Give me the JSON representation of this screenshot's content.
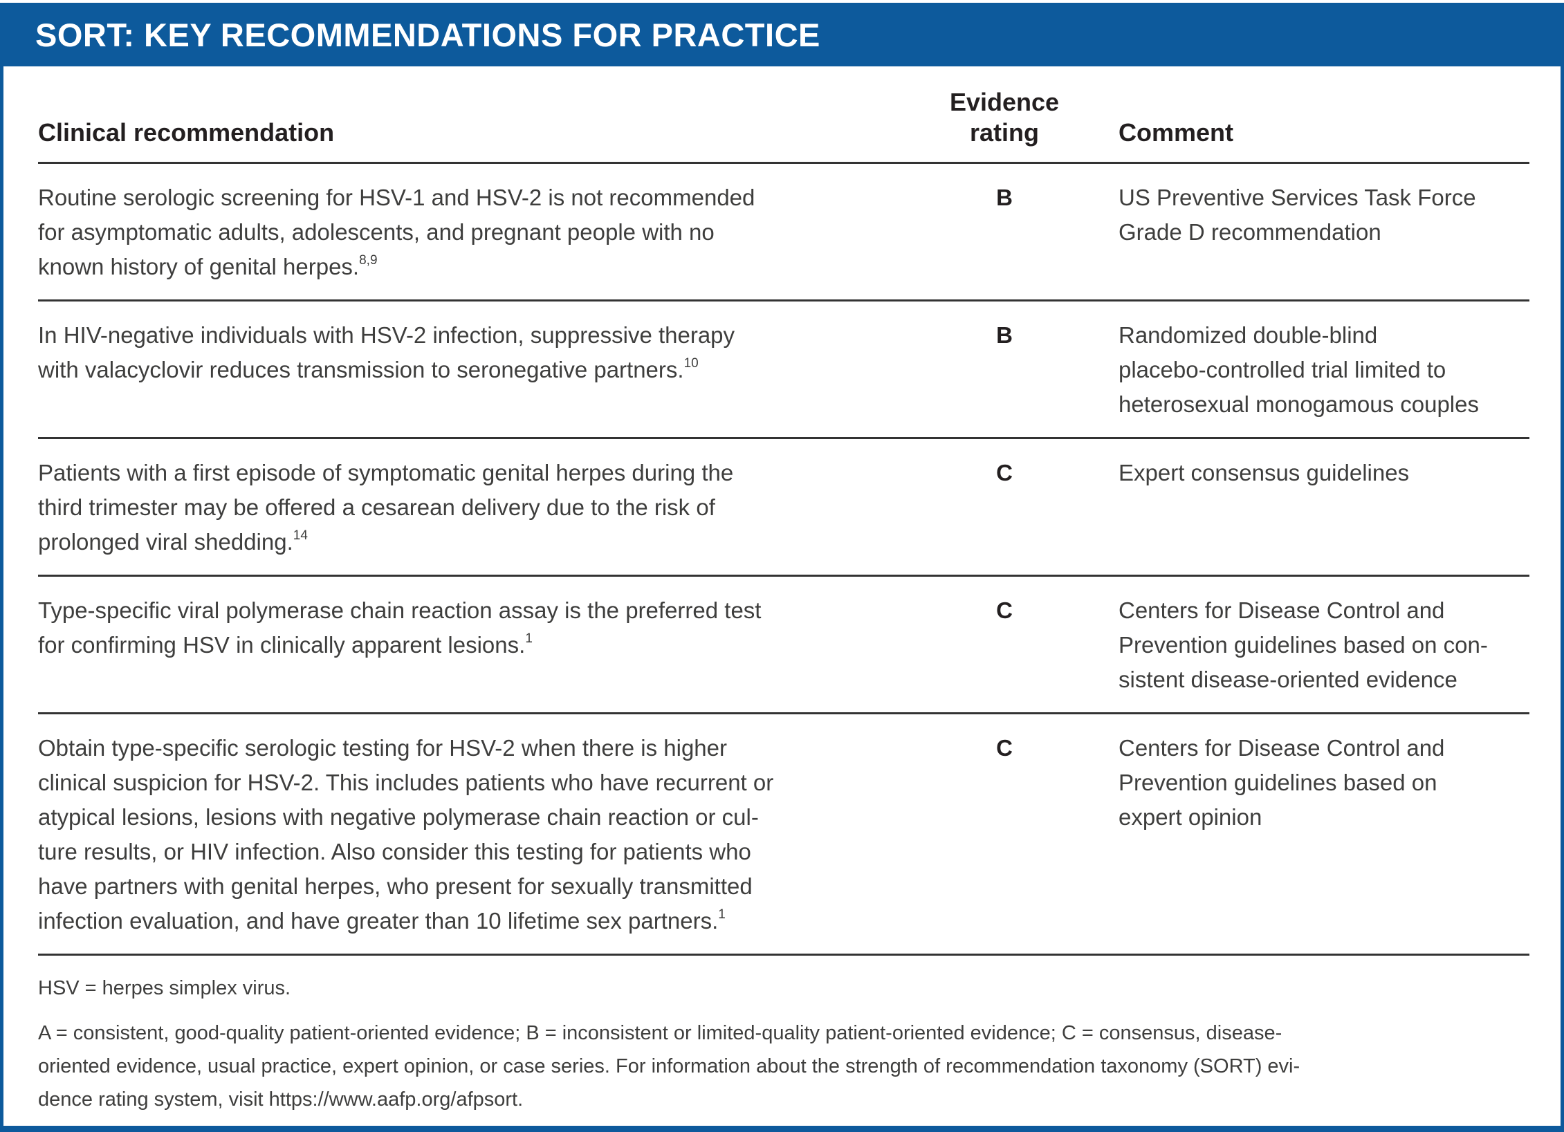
{
  "header": {
    "title": "SORT: KEY RECOMMENDATIONS FOR PRACTICE"
  },
  "table": {
    "columns": {
      "recommendation": "Clinical recommendation",
      "rating": "Evidence\nrating",
      "comment": "Comment"
    },
    "rows": [
      {
        "recommendation": "Routine serologic screening for HSV-1 and HSV-2 is not recommended\nfor asymptomatic adults, adolescents, and pregnant people with no\nknown history of genital herpes.",
        "ref": "8,9",
        "rating": "B",
        "comment": "US Preventive Services Task Force\nGrade D recommendation"
      },
      {
        "recommendation": "In HIV-negative individuals with HSV-2 infection, suppressive therapy\nwith valacyclovir reduces transmission to seronegative partners.",
        "ref": "10",
        "rating": "B",
        "comment": "Randomized double-blind\nplacebo-controlled trial limited to\nheterosexual monogamous couples"
      },
      {
        "recommendation": "Patients with a first episode of symptomatic genital herpes during the\nthird trimester may be offered a cesarean delivery due to the risk of\nprolonged viral shedding.",
        "ref": "14",
        "rating": "C",
        "comment": "Expert consensus guidelines"
      },
      {
        "recommendation": "Type-specific viral polymerase chain reaction assay is the preferred test\nfor confirming HSV in clinically apparent lesions.",
        "ref": "1",
        "rating": "C",
        "comment": "Centers for Disease Control and\nPrevention guidelines based on con-\nsistent disease-oriented evidence"
      },
      {
        "recommendation": "Obtain type-specific serologic testing for HSV-2 when there is higher\nclinical suspicion for HSV-2. This includes patients who have recurrent or\natypical lesions, lesions with negative polymerase chain reaction or cul-\nture results, or HIV infection. Also consider this testing for patients who\nhave partners with genital herpes, who present for sexually transmitted\ninfection evaluation, and have greater than 10 lifetime sex partners.",
        "ref": "1",
        "rating": "C",
        "comment": "Centers for Disease Control and\nPrevention guidelines based on\nexpert opinion"
      }
    ]
  },
  "footnotes": {
    "abbreviation": "HSV = herpes simplex virus.",
    "sort_definition": "A = consistent, good-quality patient-oriented evidence; B = inconsistent or limited-quality patient-oriented evidence; C = consensus, disease-\noriented evidence, usual practice, expert opinion, or case series. For information about the strength of recommendation taxonomy (SORT) evi-\ndence rating system, visit ",
    "url": "https://www.aafp.org/afpsort",
    "period": "."
  },
  "colors": {
    "brand_blue": "#0d5a9c",
    "heading_text": "#231f20",
    "body_text": "#3e3e3d",
    "rule": "#333333"
  }
}
